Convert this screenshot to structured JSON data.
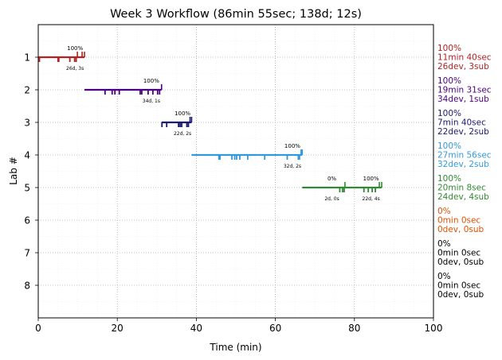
{
  "chart_data": {
    "type": "timeline",
    "title": "Week 3 Workflow (86min 55sec; 138d; 12s)",
    "xlabel": "Time (min)",
    "ylabel": "Lab #",
    "xlim": [
      0,
      100
    ],
    "ylim": [
      9,
      0
    ],
    "x_ticks": [
      "0",
      "20",
      "40",
      "60",
      "80",
      "100"
    ],
    "y_ticks": [
      "1",
      "2",
      "3",
      "4",
      "5",
      "6",
      "7",
      "8"
    ],
    "grid": true,
    "labs": [
      {
        "lab": 1,
        "color": "#b22222",
        "start": 0.0,
        "end": 11.7,
        "dev_ticks": [
          0.3,
          5.0,
          5.2,
          8.0,
          9.2,
          9.6
        ],
        "sub_ticks": [
          9.9,
          11.1,
          11.7
        ],
        "milestones": [
          {
            "x": 9.3,
            "top": "100%",
            "bottom": "26d, 3s"
          }
        ],
        "summary": [
          "100%",
          "11min 40sec",
          "26dev, 3sub"
        ]
      },
      {
        "lab": 2,
        "color": "#4b0082",
        "start": 11.7,
        "end": 31.2,
        "dev_ticks": [
          16.9,
          18.7,
          19.4,
          20.5,
          25.8,
          26.2,
          27.8,
          29.0,
          30.2,
          30.7
        ],
        "sub_ticks": [
          31.2
        ],
        "milestones": [
          {
            "x": 28.6,
            "top": "100%",
            "bottom": "34d, 1s"
          }
        ],
        "summary": [
          "100%",
          "19min 31sec",
          "34dev, 1sub"
        ]
      },
      {
        "lab": 3,
        "color": "#191970",
        "start": 31.2,
        "end": 38.8,
        "dev_ticks": [
          31.3,
          32.5,
          35.5,
          35.9,
          36.3,
          37.6,
          38.0
        ],
        "sub_ticks": [
          38.4,
          38.8
        ],
        "milestones": [
          {
            "x": 36.5,
            "top": "100%",
            "bottom": "22d, 2s"
          }
        ],
        "summary": [
          "100%",
          "7min 40sec",
          "22dev, 2sub"
        ]
      },
      {
        "lab": 4,
        "color": "#3399dd",
        "start": 38.8,
        "end": 66.8,
        "dev_ticks": [
          45.7,
          46.0,
          49.0,
          49.7,
          50.2,
          51.0,
          53.0,
          57.3,
          63.0,
          65.8,
          66.1
        ],
        "sub_ticks": [
          66.5,
          66.8
        ],
        "milestones": [
          {
            "x": 64.3,
            "top": "100%",
            "bottom": "32d, 2s"
          }
        ],
        "summary": [
          "100%",
          "27min 56sec",
          "32dev, 2sub"
        ]
      },
      {
        "lab": 5,
        "color": "#338833",
        "start": 66.8,
        "end": 86.9,
        "dev_ticks": [
          76.3,
          77.0,
          77.4,
          82.4,
          83.5,
          84.5,
          85.3
        ],
        "sub_ticks": [
          77.6,
          86.3,
          86.9
        ],
        "milestones": [
          {
            "x": 74.3,
            "top": "0%",
            "bottom": "2d, 0s"
          },
          {
            "x": 84.2,
            "top": "100%",
            "bottom": "22d, 4s"
          }
        ],
        "summary": [
          "100%",
          "20min 8sec",
          "24dev, 4sub"
        ]
      },
      {
        "lab": 6,
        "color": "#e05000",
        "summary": [
          "0%",
          "0min 0sec",
          "0dev, 0sub"
        ]
      },
      {
        "lab": 7,
        "color": "#000000",
        "summary": [
          "0%",
          "0min 0sec",
          "0dev, 0sub"
        ]
      },
      {
        "lab": 8,
        "color": "#000000",
        "summary": [
          "0%",
          "0min 0sec",
          "0dev, 0sub"
        ]
      }
    ]
  }
}
